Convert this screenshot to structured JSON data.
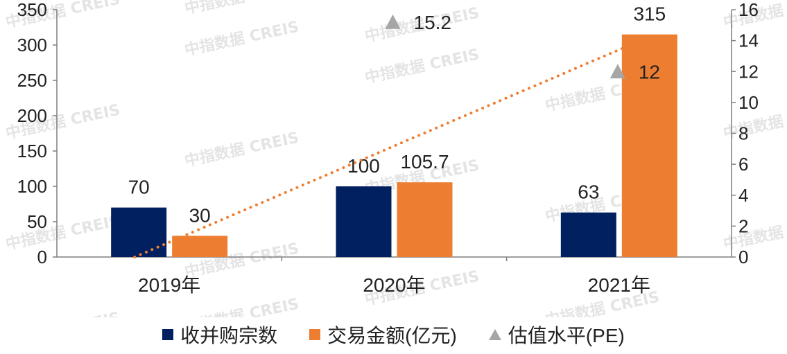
{
  "chart_data": {
    "type": "bar",
    "categories": [
      "2019年",
      "2020年",
      "2021年"
    ],
    "series": [
      {
        "name": "收并购宗数",
        "type": "bar",
        "axis": "left",
        "color": "#002060",
        "values": [
          70,
          100,
          63
        ]
      },
      {
        "name": "交易金额(亿元)",
        "type": "bar",
        "axis": "left",
        "color": "#ed7d31",
        "values": [
          30,
          105.7,
          315
        ]
      },
      {
        "name": "估值水平(PE)",
        "type": "scatter",
        "axis": "right",
        "color": "#a6a6a6",
        "marker": "triangle",
        "values": [
          null,
          15.2,
          12
        ]
      }
    ],
    "trendline": {
      "of_series": "交易金额(亿元)",
      "style": "dotted",
      "color": "#ed7d31"
    },
    "ylim_left": [
      0,
      350
    ],
    "yticks_left": [
      "0",
      "50",
      "100",
      "150",
      "200",
      "250",
      "300",
      "350"
    ],
    "ylim_right": [
      0,
      16
    ],
    "yticks_right": [
      "0",
      "2",
      "4",
      "6",
      "8",
      "10",
      "12",
      "14",
      "16"
    ],
    "data_labels": {
      "bar_count": [
        "70",
        "100",
        "63"
      ],
      "bar_amount": [
        "30",
        "105.7",
        "315"
      ],
      "pe": [
        "",
        "15.2",
        "12"
      ]
    },
    "legend_position": "bottom",
    "grid": false,
    "watermark": "中指数据 CREIS"
  },
  "legend": {
    "items": [
      {
        "label": "收并购宗数",
        "color": "#002060",
        "shape": "square"
      },
      {
        "label": "交易金额(亿元)",
        "color": "#ed7d31",
        "shape": "square"
      },
      {
        "label": "估值水平(PE)",
        "color": "#a6a6a6",
        "shape": "triangle"
      }
    ]
  }
}
